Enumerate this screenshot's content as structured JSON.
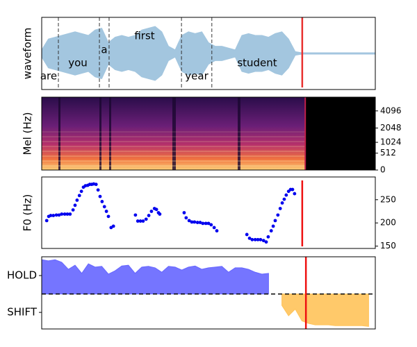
{
  "chart_data": [
    {
      "type": "waveform",
      "ylabel": "waveform",
      "xlim": [
        0,
        100
      ],
      "ylim": [
        -1,
        1
      ],
      "color": "#a3c6df",
      "x": [
        0,
        2,
        4,
        6,
        8,
        10,
        12,
        14,
        16,
        18,
        20,
        22,
        24,
        26,
        28,
        30,
        32,
        34,
        36,
        38,
        40,
        42,
        44,
        46,
        48,
        50,
        52,
        54,
        56,
        58,
        60,
        62,
        64,
        66,
        68,
        70,
        72,
        74,
        76,
        78,
        80,
        82,
        84,
        86,
        88,
        90,
        92,
        94,
        96,
        98,
        100
      ],
      "values": [
        0.1,
        0.4,
        0.45,
        0.5,
        0.55,
        0.6,
        0.55,
        0.5,
        0.65,
        0.7,
        0.3,
        0.45,
        0.5,
        0.45,
        0.5,
        0.65,
        0.7,
        0.75,
        0.6,
        0.2,
        0.1,
        0.5,
        0.6,
        0.55,
        0.6,
        0.3,
        0.2,
        0.2,
        0.15,
        0.1,
        0.5,
        0.55,
        0.5,
        0.5,
        0.45,
        0.55,
        0.6,
        0.4,
        0.05,
        0.02,
        0.02,
        0.02,
        0.02,
        0.02,
        0.02,
        0.02,
        0.02,
        0.02,
        0.02,
        0.02,
        0.02
      ],
      "words": [
        "are",
        "you",
        "a",
        "first",
        "year",
        "student"
      ],
      "boundaries": [
        5.0,
        17.3,
        20.2,
        41.9,
        51.0
      ],
      "cursor": 78.1,
      "cursor_color": "#e8312f"
    },
    {
      "type": "spectrogram",
      "ylabel": "Mel (Hz)",
      "xlim": [
        0,
        100
      ],
      "ylim": [
        0,
        6800
      ],
      "yscale": "mel",
      "yticks": [
        0,
        512,
        1024,
        2048,
        4096
      ],
      "cursor": 79.0
    },
    {
      "type": "scatter",
      "ylabel": "F0 (Hz)",
      "xlim": [
        0,
        100
      ],
      "ylim": [
        145,
        299
      ],
      "yticks": [
        150,
        200,
        250
      ],
      "color": "#0000ee",
      "x": [
        1.5,
        2.1,
        2.7,
        3.5,
        4.4,
        5.2,
        6.0,
        6.9,
        7.7,
        8.5,
        9.4,
        10.0,
        10.6,
        11.3,
        11.9,
        12.5,
        13.1,
        13.8,
        14.4,
        15.0,
        15.6,
        16.3,
        16.9,
        17.5,
        18.1,
        18.8,
        19.4,
        20.0,
        20.8,
        21.5,
        28.1,
        28.8,
        29.6,
        30.4,
        31.3,
        32.1,
        32.9,
        33.8,
        34.4,
        35.0,
        35.4,
        42.7,
        43.3,
        44.2,
        45.0,
        45.8,
        46.7,
        47.5,
        48.3,
        49.2,
        50.0,
        50.8,
        51.7,
        52.5,
        61.5,
        62.3,
        63.1,
        64.0,
        64.8,
        65.6,
        66.5,
        67.3,
        67.9,
        68.8,
        69.4,
        70.0,
        70.8,
        71.5,
        72.1,
        72.7,
        73.3,
        74.0,
        74.6,
        75.2,
        75.8
      ],
      "values": [
        205,
        214,
        216,
        216,
        217,
        217,
        219,
        219,
        219,
        219,
        228,
        238,
        249,
        259,
        268,
        277,
        280,
        281,
        283,
        283,
        284,
        283,
        271,
        257,
        246,
        235,
        225,
        214,
        190,
        193,
        217,
        204,
        204,
        204,
        208,
        216,
        225,
        231,
        229,
        222,
        219,
        222,
        211,
        205,
        202,
        202,
        201,
        201,
        199,
        199,
        199,
        196,
        190,
        183,
        175,
        167,
        164,
        164,
        164,
        164,
        162,
        159,
        170,
        183,
        193,
        205,
        217,
        231,
        243,
        251,
        260,
        268,
        272,
        272,
        263
      ],
      "cursor": 78.1,
      "cursor_color": "#ee1111"
    },
    {
      "type": "area",
      "xlim": [
        0,
        100
      ],
      "ylim": [
        -0.45,
        1.51
      ],
      "yticks": [
        {
          "value": 0,
          "label": "SHIFT"
        },
        {
          "value": 1,
          "label": "HOLD"
        }
      ],
      "threshold": 0.5,
      "series": [
        {
          "color": "#6666ff",
          "x": [
            0,
            2,
            4,
            6,
            8,
            10,
            12,
            14,
            16,
            18,
            20,
            22,
            24,
            26,
            28,
            30,
            32,
            34,
            36,
            38,
            40,
            42,
            44,
            46,
            48,
            50,
            52,
            54,
            56,
            58,
            60,
            62,
            64,
            66,
            68
          ],
          "values": [
            1.43,
            1.4,
            1.43,
            1.36,
            1.17,
            1.28,
            1.06,
            1.32,
            1.23,
            1.25,
            1.04,
            1.13,
            1.26,
            1.28,
            1.06,
            1.23,
            1.25,
            1.21,
            1.09,
            1.25,
            1.23,
            1.15,
            1.23,
            1.26,
            1.17,
            1.21,
            1.23,
            1.25,
            1.09,
            1.21,
            1.21,
            1.17,
            1.09,
            1.04,
            1.06
          ]
        },
        {
          "color": "#ffc35a",
          "x": [
            72,
            74,
            76,
            78,
            80,
            82,
            84,
            86,
            88,
            90,
            92,
            94,
            96,
            98
          ],
          "values": [
            0.19,
            -0.09,
            0.09,
            -0.23,
            -0.3,
            -0.34,
            -0.34,
            -0.34,
            -0.36,
            -0.36,
            -0.36,
            -0.36,
            -0.36,
            -0.38
          ]
        }
      ],
      "cursor": 79.2,
      "cursor_color": "#ee1111"
    }
  ]
}
